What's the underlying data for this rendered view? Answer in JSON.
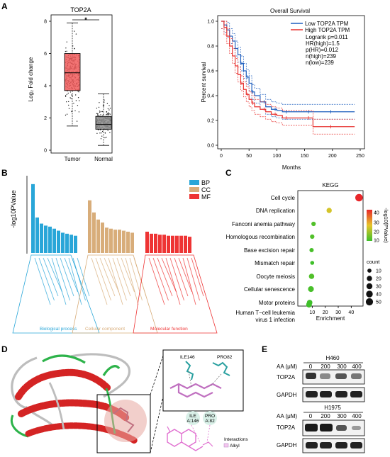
{
  "panels": {
    "a": "A",
    "b": "B",
    "c": "C",
    "d": "D",
    "e": "E"
  },
  "box_plot": {
    "title": "TOP2A",
    "ylabel": "Log₂ Fold change",
    "ticks": [
      "0",
      "2",
      "4",
      "6",
      "8"
    ],
    "groups": [
      "Tumor",
      "Normal"
    ],
    "significance": "*",
    "colors": {
      "tumor": "#f05a5a",
      "normal": "#8c8c8c"
    },
    "chart_data": {
      "type": "box",
      "categories": [
        "Tumor",
        "Normal"
      ],
      "ylim": [
        0,
        8
      ],
      "boxes": [
        {
          "name": "Tumor",
          "min": 1.5,
          "q1": 3.7,
          "median": 4.8,
          "q3": 6.0,
          "max": 7.9
        },
        {
          "name": "Normal",
          "min": 0.3,
          "q1": 1.3,
          "median": 1.6,
          "q3": 2.1,
          "max": 3.5
        }
      ]
    }
  },
  "survival": {
    "title": "Overall Survival",
    "xlabel": "Months",
    "ylabel": "Percent survival",
    "xticks": [
      "0",
      "50",
      "100",
      "150",
      "200",
      "250"
    ],
    "yticks": [
      "0.0",
      "0.2",
      "0.4",
      "0.6",
      "0.8",
      "1.0"
    ],
    "legend": [
      "Low TOP2A TPM",
      "High TOP2A TPM"
    ],
    "stats": [
      "Logrank p=0.011",
      "HR(high)=1.5",
      "p(HR)=0.012",
      "n(high)=239",
      "n(low)=239"
    ],
    "colors": {
      "low": "#1f5fbf",
      "high": "#e8312f"
    },
    "chart_data": {
      "type": "line",
      "xlim": [
        0,
        250
      ],
      "ylim": [
        0,
        1
      ],
      "series": [
        {
          "name": "Low TOP2A TPM",
          "x": [
            0,
            5,
            10,
            15,
            20,
            25,
            30,
            35,
            40,
            45,
            50,
            55,
            60,
            70,
            80,
            90,
            100,
            110,
            120,
            140,
            160,
            180,
            200,
            240
          ],
          "y": [
            1.0,
            0.97,
            0.93,
            0.88,
            0.84,
            0.78,
            0.73,
            0.66,
            0.6,
            0.55,
            0.5,
            0.43,
            0.4,
            0.35,
            0.31,
            0.29,
            0.28,
            0.27,
            0.27,
            0.27,
            0.27,
            0.27,
            0.27,
            0.27
          ]
        },
        {
          "name": "High TOP2A TPM",
          "x": [
            0,
            5,
            10,
            15,
            20,
            25,
            30,
            35,
            40,
            45,
            50,
            55,
            60,
            70,
            80,
            90,
            100,
            110,
            120,
            140,
            160,
            165,
            200,
            240
          ],
          "y": [
            1.0,
            0.95,
            0.88,
            0.8,
            0.72,
            0.64,
            0.57,
            0.5,
            0.45,
            0.41,
            0.37,
            0.34,
            0.31,
            0.29,
            0.27,
            0.25,
            0.24,
            0.22,
            0.22,
            0.22,
            0.22,
            0.15,
            0.15,
            0.15
          ]
        }
      ]
    }
  },
  "go_bar": {
    "ylabel": "-log10PValue",
    "legend": [
      "BP",
      "CC",
      "MF"
    ],
    "colors": {
      "BP": "#29a6d8",
      "CC": "#d8ad7a",
      "MF": "#ee3434"
    },
    "group_labels": [
      "Biological process",
      "Cellular component",
      "Molecular function"
    ],
    "chart_data": {
      "type": "bar",
      "series": [
        {
          "name": "BP",
          "values": [
            68,
            35,
            29,
            27,
            26,
            24,
            22,
            20,
            19,
            18,
            17
          ]
        },
        {
          "name": "CC",
          "values": [
            52,
            40,
            33,
            30,
            25,
            24,
            23,
            23,
            22,
            21,
            20
          ]
        },
        {
          "name": "MF",
          "values": [
            21,
            19,
            19,
            18,
            18,
            17,
            17,
            17,
            17,
            17,
            16
          ]
        }
      ]
    }
  },
  "kegg": {
    "title": "KEGG",
    "xlabel": "Enrichment",
    "xticks": [
      "10",
      "20",
      "30",
      "40"
    ],
    "pathways": [
      "Cell cycle",
      "DNA replication",
      "Fanconi anemia pathway",
      "Homologous recombination",
      "Base excision repair",
      "Mismatch repair",
      "Oocyte meiosis",
      "Cellular senescence",
      "Motor proteins",
      "Human T−cell leukemia",
      "virus 1 infection"
    ],
    "color_title": "-log10(PValue)",
    "color_ticks": [
      "40",
      "30",
      "20",
      "10"
    ],
    "size_title": "count",
    "size_ticks": [
      "10",
      "20",
      "30",
      "40",
      "50"
    ],
    "chart_data": {
      "type": "scatter",
      "xlim": [
        0,
        48
      ],
      "points": [
        {
          "name": "Cell cycle",
          "x": 46,
          "count": 55,
          "logp": 45
        },
        {
          "name": "DNA replication",
          "x": 23,
          "count": 20,
          "logp": 24
        },
        {
          "name": "Fanconi anemia pathway",
          "x": 11,
          "count": 12,
          "logp": 9
        },
        {
          "name": "Homologous recombination",
          "x": 10,
          "count": 12,
          "logp": 9
        },
        {
          "name": "Base excision repair",
          "x": 9.5,
          "count": 11,
          "logp": 8
        },
        {
          "name": "Mismatch repair",
          "x": 10,
          "count": 8,
          "logp": 7
        },
        {
          "name": "Oocyte meiosis",
          "x": 9.5,
          "count": 22,
          "logp": 9
        },
        {
          "name": "Cellular senescence",
          "x": 9,
          "count": 27,
          "logp": 8
        },
        {
          "name": "Motor proteins",
          "x": 8,
          "count": 24,
          "logp": 7
        },
        {
          "name": "Human T−cell leukemia virus 1 infection",
          "x": 7.5,
          "count": 25,
          "logp": 7
        }
      ]
    }
  },
  "docking": {
    "residues": [
      "ILE146",
      "PRO82"
    ],
    "residues2d": [
      {
        "a": "ILE",
        "b": "A:146"
      },
      {
        "a": "PRO",
        "b": "A:82"
      }
    ],
    "interactions_title": "Interactions",
    "interaction": "Alkyl"
  },
  "blot": {
    "cells": [
      "H460",
      "H1975"
    ],
    "dose_label": "AA (μM)",
    "doses": [
      "0",
      "200",
      "300",
      "400"
    ],
    "proteins": [
      "TOP2A",
      "GAPDH"
    ]
  }
}
